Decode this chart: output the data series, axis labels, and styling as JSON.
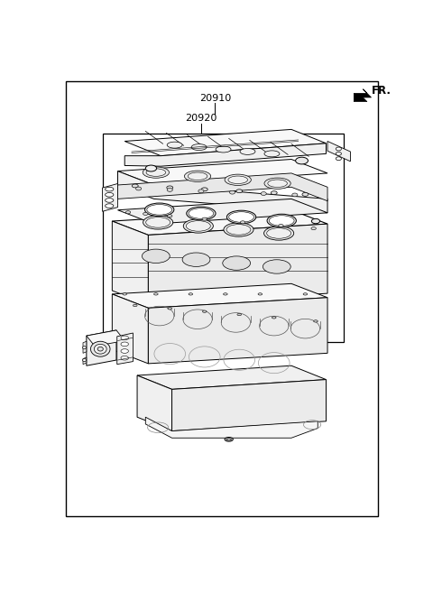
{
  "label_20910": "20910",
  "label_20920": "20920",
  "label_fr": "FR.",
  "bg_color": "#ffffff",
  "lc": "#000000",
  "fig_width": 4.8,
  "fig_height": 6.56,
  "dpi": 100
}
